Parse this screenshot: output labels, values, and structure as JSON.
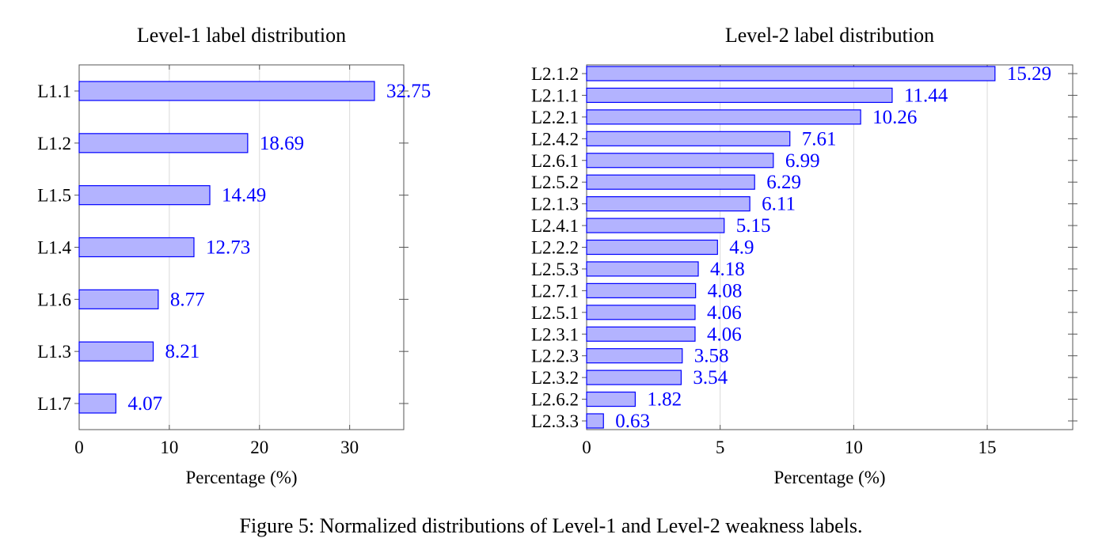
{
  "colors": {
    "bar_fill": "#b3b3ff",
    "bar_stroke": "#0000ff",
    "label_color": "#0000ff",
    "grid": "#d9d9d9",
    "axis": "#555555"
  },
  "chart_data": [
    {
      "type": "bar",
      "orientation": "horizontal",
      "title": "Level-1 label distribution",
      "xlabel": "Percentage (%)",
      "ylabel": "",
      "xlim": [
        0,
        36
      ],
      "xticks": [
        0,
        10,
        20,
        30
      ],
      "grid": "vertical",
      "categories": [
        "L1.1",
        "L1.2",
        "L1.5",
        "L1.4",
        "L1.6",
        "L1.3",
        "L1.7"
      ],
      "values": [
        32.75,
        18.69,
        14.49,
        12.73,
        8.77,
        8.21,
        4.07
      ],
      "value_labels": [
        "32.75",
        "18.69",
        "14.49",
        "12.73",
        "8.77",
        "8.21",
        "4.07"
      ]
    },
    {
      "type": "bar",
      "orientation": "horizontal",
      "title": "Level-2 label distribution",
      "xlabel": "Percentage (%)",
      "ylabel": "",
      "xlim": [
        0,
        18.2
      ],
      "xticks": [
        0,
        5,
        10,
        15
      ],
      "grid": "vertical",
      "categories": [
        "L2.1.2",
        "L2.1.1",
        "L2.2.1",
        "L2.4.2",
        "L2.6.1",
        "L2.5.2",
        "L2.1.3",
        "L2.4.1",
        "L2.2.2",
        "L2.5.3",
        "L2.7.1",
        "L2.5.1",
        "L2.3.1",
        "L2.2.3",
        "L2.3.2",
        "L2.6.2",
        "L2.3.3"
      ],
      "values": [
        15.29,
        11.44,
        10.26,
        7.61,
        6.99,
        6.29,
        6.11,
        5.15,
        4.9,
        4.18,
        4.08,
        4.06,
        4.06,
        3.58,
        3.54,
        1.82,
        0.63
      ],
      "value_labels": [
        "15.29",
        "11.44",
        "10.26",
        "7.61",
        "6.99",
        "6.29",
        "6.11",
        "5.15",
        "4.9",
        "4.18",
        "4.08",
        "4.06",
        "4.06",
        "3.58",
        "3.54",
        "1.82",
        "0.63"
      ]
    }
  ],
  "caption": "Figure 5: Normalized distributions of Level-1 and Level-2 weakness labels."
}
